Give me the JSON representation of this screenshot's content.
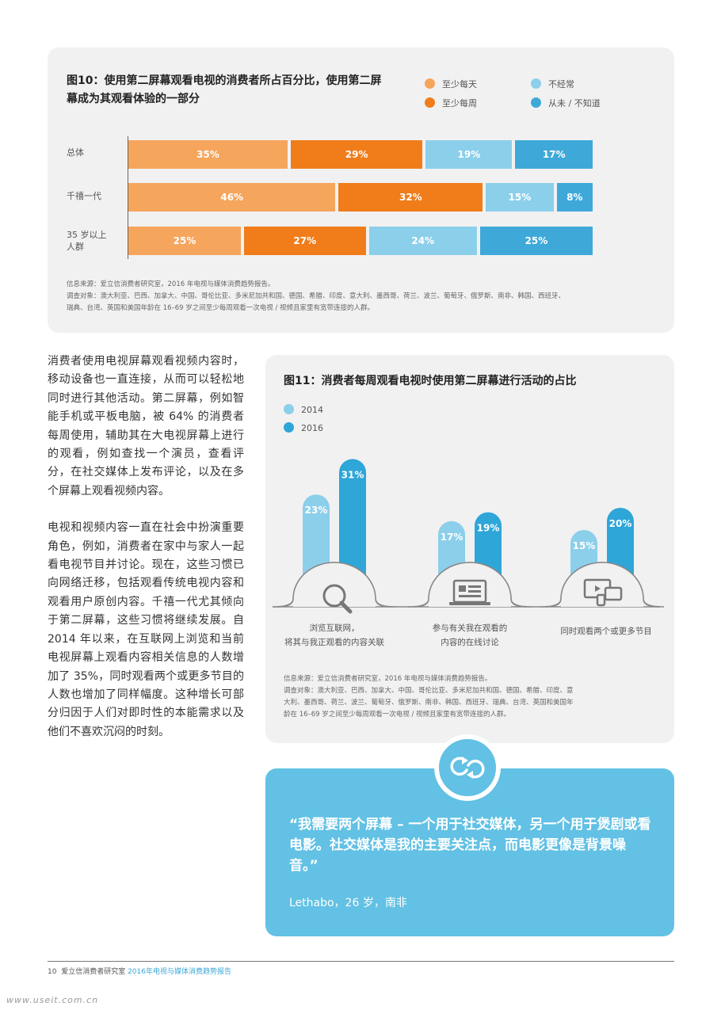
{
  "fig10": {
    "title": "图10：使用第二屏幕观看电视的消费者所占百分比，使用第二屏幕成为其观看体验的一部分",
    "legend": [
      {
        "label": "至少每天",
        "color": "#f6a55d"
      },
      {
        "label": "至少每周",
        "color": "#f07d1a"
      },
      {
        "label": "不经常",
        "color": "#8ccfeb"
      },
      {
        "label": "从未 / 不知道",
        "color": "#3ea9d9"
      }
    ],
    "chart_data": {
      "type": "bar",
      "orientation": "horizontal-stacked",
      "categories": [
        "总体",
        "千禧一代",
        "35 岁以上人群"
      ],
      "series": [
        {
          "name": "至少每天",
          "values": [
            35,
            46,
            25
          ]
        },
        {
          "name": "至少每周",
          "values": [
            29,
            32,
            27
          ]
        },
        {
          "name": "不经常",
          "values": [
            19,
            15,
            24
          ]
        },
        {
          "name": "从未 / 不知道",
          "values": [
            17,
            8,
            25
          ]
        }
      ],
      "value_labels": [
        [
          "35%",
          "29%",
          "19%",
          "17%"
        ],
        [
          "46%",
          "32%",
          "15%",
          "8%"
        ],
        [
          "25%",
          "27%",
          "24%",
          "25%"
        ]
      ]
    },
    "category_lines": [
      [
        "总体"
      ],
      [
        "千禧一代"
      ],
      [
        "35 岁以上",
        "人群"
      ]
    ],
    "source_lines": [
      "信息来源：爱立信消费者研究室，2016 年电视与媒体消费趋势报告。",
      "调查对象：澳大利亚、巴西、加拿大、中国、哥伦比亚、多米尼加共和国、德国、希腊、印度、意大利、墨西哥、荷兰、波兰、葡萄牙、俄罗斯、南非、韩国、西班牙、",
      "瑞典、台湾、英国和美国年龄在 16–69 岁之间至少每周观看一次电视 / 视频且家里有宽带连接的人群。"
    ]
  },
  "body": {
    "paragraphs": [
      "消费者使用电视屏幕观看视频内容时，移动设备也一直连接，从而可以轻松地同时进行其他活动。第二屏幕，例如智能手机或平板电脑，被 64% 的消费者每周使用，辅助其在大电视屏幕上进行的观看，例如查找一个演员，查看评分，在社交媒体上发布评论，以及在多个屏幕上观看视频内容。",
      "电视和视频内容一直在社会中扮演重要角色，例如，消费者在家中与家人一起看电视节目并讨论。现在，这些习惯已向网络迁移，包括观看传统电视内容和观看用户原创内容。千禧一代尤其倾向于第二屏幕，这些习惯将继续发展。自 2014 年以来，在互联网上浏览和当前电视屏幕上观看内容相关信息的人数增加了 35%，同时观看两个或更多节目的人数也增加了同样幅度。这种增长可部分归因于人们对即时性的本能需求以及他们不喜欢沉闷的时刻。"
    ]
  },
  "fig11": {
    "title": "图11：消费者每周观看电视时使用第二屏幕进行活动的占比",
    "legend": [
      {
        "label": "2014",
        "color": "#8ccfeb"
      },
      {
        "label": "2016",
        "color": "#2ea6d8"
      }
    ],
    "chart_data": {
      "type": "bar",
      "categories": [
        "浏览互联网，将其与我正观看的内容关联",
        "参与有关我在观看的内容的在线讨论",
        "同时观看两个或更多节目"
      ],
      "series": [
        {
          "name": "2014",
          "values": [
            23,
            17,
            15
          ]
        },
        {
          "name": "2016",
          "values": [
            31,
            19,
            20
          ]
        }
      ],
      "value_labels": [
        [
          "23%",
          "17%",
          "15%"
        ],
        [
          "31%",
          "19%",
          "20%"
        ]
      ]
    },
    "category_lines": [
      [
        "浏览互联网，",
        "将其与我正观看的内容关联"
      ],
      [
        "参与有关我在观看的",
        "内容的在线讨论"
      ],
      [
        "同时观看两个或更多节目"
      ]
    ],
    "icons": [
      "magnifier-icon",
      "laptop-chat-icon",
      "multi-screen-icon"
    ],
    "source_lines": [
      "信息来源：爱立信消费者研究室，2016 年电视与媒体消费趋势报告。",
      "调查对象：澳大利亚、巴西、加拿大、中国、哥伦比亚、多米尼加共和国、德国、希腊、印度、意",
      "大利、墨西哥、荷兰、波兰、葡萄牙、俄罗斯、南非、韩国、西班牙、瑞典、台湾、英国和美国年",
      "龄在 16–69 岁之间至少每周观看一次电视 / 视频且家里有宽带连接的人群。"
    ]
  },
  "quote": {
    "icon": "circular-arrows-icon",
    "text": "“我需要两个屏幕 – 一个用于社交媒体，另一个用于煲剧或看电影。社交媒体是我的主要关注点，而电影更像是背景噪音。”",
    "author": "Lethabo，26 岁，南非",
    "color": "#62c1e4"
  },
  "footer": {
    "page": "10",
    "publisher": "爱立信消费者研究室",
    "report": "2016年电视与媒体消费趋势报告"
  },
  "watermark": "www.useit.com.cn"
}
